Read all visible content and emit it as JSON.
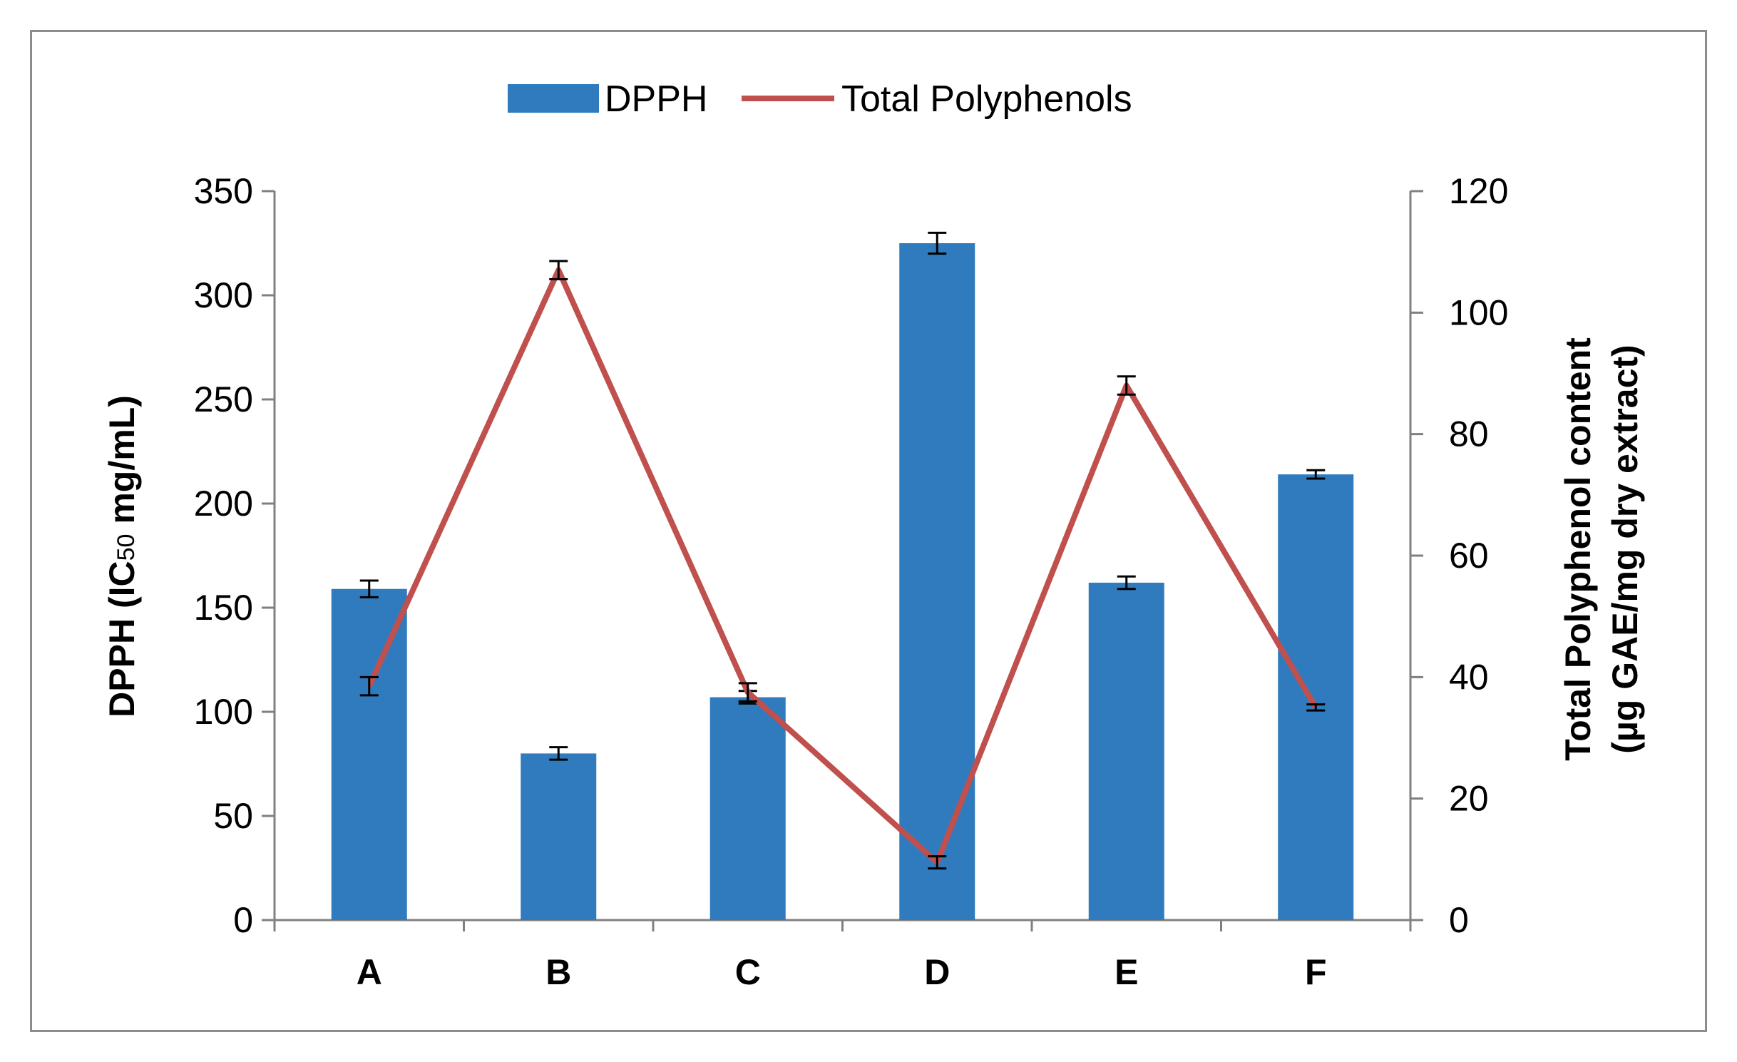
{
  "chart_data": {
    "type": "bar",
    "categories": [
      "A",
      "B",
      "C",
      "D",
      "E",
      "F"
    ],
    "series": [
      {
        "name": "DPPH",
        "kind": "bar",
        "axis": "left",
        "color": "#2F7BBE",
        "values": [
          159,
          80,
          107,
          325,
          162,
          214
        ],
        "errors": [
          4,
          3,
          3,
          5,
          3,
          2
        ]
      },
      {
        "name": "Total Polyphenols",
        "kind": "line",
        "axis": "right",
        "color": "#C0504D",
        "values": [
          38.5,
          107,
          37.5,
          9.5,
          88,
          35
        ],
        "errors": [
          1.5,
          1.5,
          1.5,
          1,
          1.5,
          0.5
        ]
      }
    ],
    "y_left": {
      "label_prefix": "DPPH (IC",
      "label_sub": "50",
      "label_suffix": " mg/mL)",
      "ylim": [
        0,
        350
      ],
      "ticks": [
        "0",
        "50",
        "100",
        "150",
        "200",
        "250",
        "300",
        "350"
      ]
    },
    "y_right": {
      "label_line1": "Total Polyphenol content",
      "label_line2": "(µg GAE/mg dry extract)",
      "ylim": [
        0,
        120
      ],
      "ticks": [
        "0",
        "20",
        "40",
        "60",
        "80",
        "100",
        "120"
      ]
    },
    "legend": {
      "position": "top-center"
    },
    "grid": false
  }
}
